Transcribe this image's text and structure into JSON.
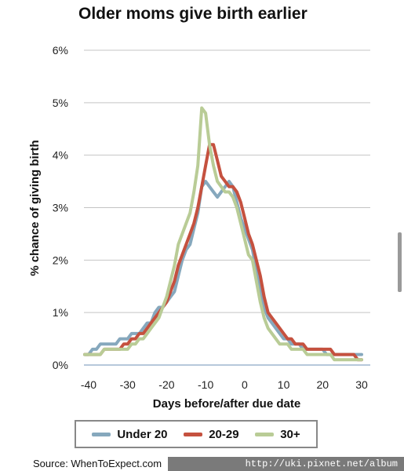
{
  "title": "Older moms give birth earlier",
  "chart_data": {
    "type": "line",
    "title": "Older moms give birth earlier",
    "xlabel": "Days before/after due date",
    "ylabel": "% chance of giving birth",
    "xlim": [
      -41,
      31
    ],
    "ylim": [
      0,
      6
    ],
    "x_ticks": [
      -40,
      -30,
      -20,
      -10,
      0,
      10,
      20,
      30
    ],
    "y_ticks": [
      0,
      1,
      2,
      3,
      4,
      5,
      6
    ],
    "y_tick_labels": [
      "0%",
      "1%",
      "2%",
      "3%",
      "4%",
      "5%",
      "6%"
    ],
    "grid": "horizontal",
    "legend_position": "bottom",
    "x": [
      -41,
      -40,
      -39,
      -38,
      -37,
      -36,
      -35,
      -34,
      -33,
      -32,
      -31,
      -30,
      -29,
      -28,
      -27,
      -26,
      -25,
      -24,
      -23,
      -22,
      -21,
      -20,
      -19,
      -18,
      -17,
      -16,
      -15,
      -14,
      -13,
      -12,
      -11,
      -10,
      -9,
      -8,
      -7,
      -6,
      -5,
      -4,
      -3,
      -2,
      -1,
      0,
      1,
      2,
      3,
      4,
      5,
      6,
      7,
      8,
      9,
      10,
      11,
      12,
      13,
      14,
      15,
      16,
      17,
      18,
      19,
      20,
      21,
      22,
      23,
      24,
      25,
      26,
      27,
      28,
      29,
      30
    ],
    "series": [
      {
        "name": "Under 20",
        "color": "#86a8bd",
        "values": [
          0.2,
          0.2,
          0.3,
          0.3,
          0.4,
          0.4,
          0.4,
          0.4,
          0.4,
          0.5,
          0.5,
          0.5,
          0.6,
          0.6,
          0.6,
          0.7,
          0.8,
          0.8,
          1.0,
          1.1,
          1.1,
          1.2,
          1.3,
          1.4,
          1.7,
          2.0,
          2.2,
          2.3,
          2.6,
          2.9,
          3.4,
          3.5,
          3.4,
          3.3,
          3.2,
          3.3,
          3.4,
          3.5,
          3.4,
          3.1,
          2.8,
          2.6,
          2.4,
          2.2,
          1.8,
          1.4,
          1.1,
          0.9,
          0.8,
          0.7,
          0.6,
          0.5,
          0.5,
          0.4,
          0.4,
          0.4,
          0.3,
          0.3,
          0.3,
          0.3,
          0.3,
          0.3,
          0.2,
          0.2,
          0.2,
          0.2,
          0.2,
          0.2,
          0.2,
          0.2,
          0.2,
          0.2
        ]
      },
      {
        "name": "20-29",
        "color": "#c5513f",
        "values": [
          0.2,
          0.2,
          0.2,
          0.2,
          0.2,
          0.3,
          0.3,
          0.3,
          0.3,
          0.3,
          0.4,
          0.4,
          0.5,
          0.5,
          0.6,
          0.6,
          0.7,
          0.8,
          0.9,
          1.0,
          1.1,
          1.2,
          1.4,
          1.6,
          1.9,
          2.1,
          2.3,
          2.5,
          2.7,
          3.0,
          3.4,
          3.8,
          4.2,
          4.2,
          3.9,
          3.6,
          3.5,
          3.4,
          3.4,
          3.3,
          3.1,
          2.8,
          2.5,
          2.3,
          2.0,
          1.7,
          1.3,
          1.0,
          0.9,
          0.8,
          0.7,
          0.6,
          0.5,
          0.5,
          0.4,
          0.4,
          0.4,
          0.3,
          0.3,
          0.3,
          0.3,
          0.3,
          0.3,
          0.3,
          0.2,
          0.2,
          0.2,
          0.2,
          0.2,
          0.2,
          0.1,
          0.1
        ]
      },
      {
        "name": "30+",
        "color": "#b9cc96",
        "values": [
          0.2,
          0.2,
          0.2,
          0.2,
          0.2,
          0.3,
          0.3,
          0.3,
          0.3,
          0.3,
          0.3,
          0.3,
          0.4,
          0.4,
          0.5,
          0.5,
          0.6,
          0.7,
          0.8,
          0.9,
          1.1,
          1.3,
          1.6,
          1.9,
          2.3,
          2.5,
          2.7,
          2.9,
          3.3,
          3.8,
          4.9,
          4.8,
          4.2,
          3.8,
          3.5,
          3.4,
          3.3,
          3.3,
          3.2,
          3.0,
          2.7,
          2.4,
          2.1,
          2.0,
          1.6,
          1.2,
          0.9,
          0.7,
          0.6,
          0.5,
          0.4,
          0.4,
          0.4,
          0.3,
          0.3,
          0.3,
          0.3,
          0.2,
          0.2,
          0.2,
          0.2,
          0.2,
          0.2,
          0.2,
          0.1,
          0.1,
          0.1,
          0.1,
          0.1,
          0.1,
          0.1,
          0.1
        ]
      }
    ]
  },
  "legend": {
    "items": [
      {
        "label": "Under 20",
        "color": "#86a8bd"
      },
      {
        "label": "20-29",
        "color": "#c5513f"
      },
      {
        "label": "30+",
        "color": "#b9cc96"
      }
    ]
  },
  "footer": {
    "source": "Source: WhenToExpect.com",
    "watermark": "http://uki.pixnet.net/album"
  }
}
